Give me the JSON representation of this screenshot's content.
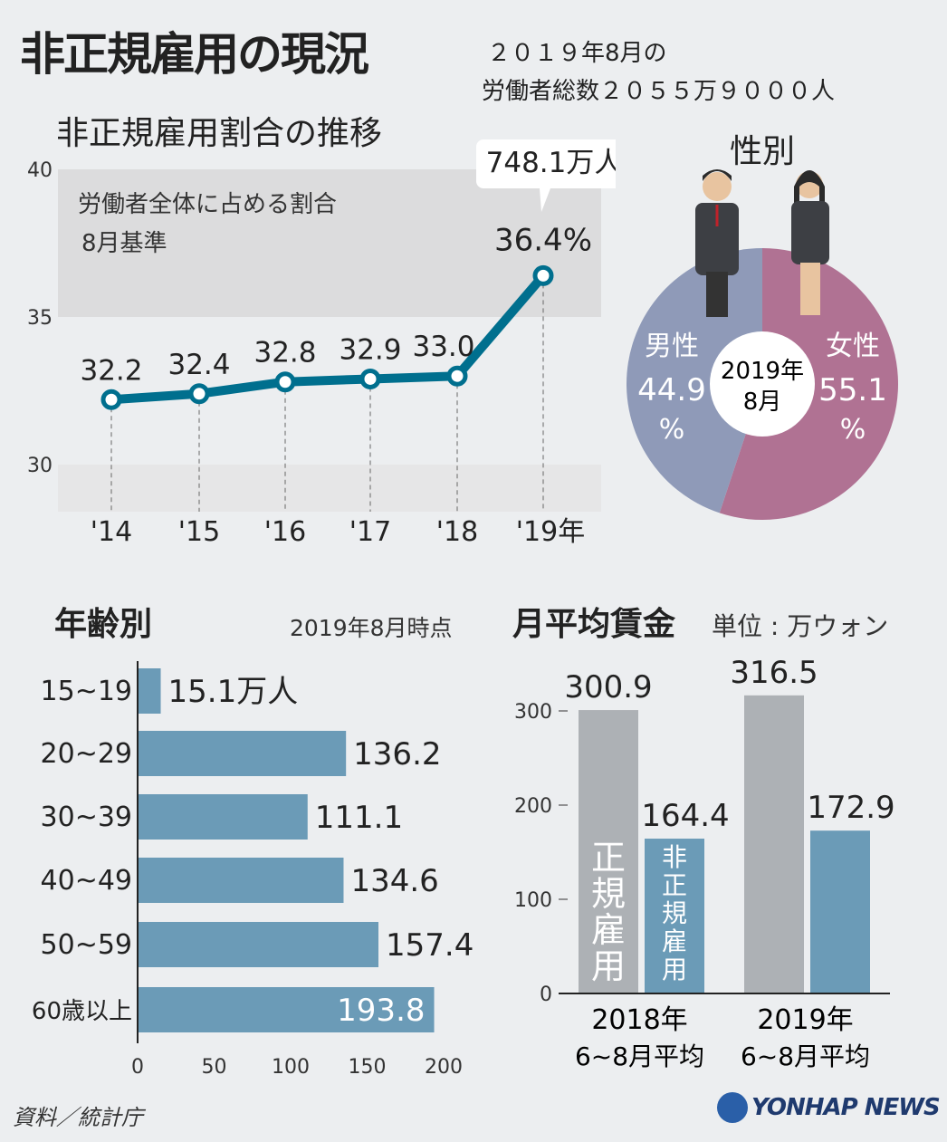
{
  "title": "非正規雇用の現況",
  "total_workers": {
    "line1": "２０１９年8月の",
    "line2": "労働者総数２０５５万９０００人"
  },
  "colors": {
    "line": "#006f8e",
    "bar": "#6b9bb7",
    "regular": "#adb1b5",
    "female": "#b07293",
    "male": "#8f9ab8",
    "band": "#dcdcdd"
  },
  "logo": "YONHAP NEWS",
  "source": "資料／統計庁",
  "chart_data": [
    {
      "type": "line",
      "title": "非正規雇用割合の推移",
      "note_line1": "労働者全体に占める割合",
      "note_line2": "8月基準",
      "categories": [
        "'14",
        "'15",
        "'16",
        "'17",
        "'18",
        "'19年"
      ],
      "values": [
        32.2,
        32.4,
        32.8,
        32.9,
        33.0,
        36.4
      ],
      "data_labels": [
        "32.2",
        "32.4",
        "32.8",
        "32.9",
        "33.0",
        "36.4%"
      ],
      "callout": "748.1万人",
      "yticks": [
        "30",
        "35",
        "40"
      ],
      "ylim": [
        28.4,
        40
      ]
    },
    {
      "type": "pie",
      "title": "性別",
      "center_label_line1": "2019年",
      "center_label_line2": "8月",
      "slices": [
        {
          "label": "女性",
          "value": 55.1,
          "value_label": "55.1",
          "unit": "%"
        },
        {
          "label": "男性",
          "value": 44.9,
          "value_label": "44.9",
          "unit": "%"
        }
      ]
    },
    {
      "type": "bar",
      "orientation": "horizontal",
      "title": "年齢別",
      "subtitle": "2019年8月時点",
      "categories": [
        "15~19",
        "20~29",
        "30~39",
        "40~49",
        "50~59",
        "60歳以上"
      ],
      "values": [
        15.1,
        136.2,
        111.1,
        134.6,
        157.4,
        193.8
      ],
      "data_labels": [
        "15.1万人",
        "136.2",
        "111.1",
        "134.6",
        "157.4",
        "193.8"
      ],
      "xticks": [
        "0",
        "50",
        "100",
        "150",
        "200"
      ],
      "xlim": [
        0,
        200
      ]
    },
    {
      "type": "bar",
      "title": "月平均賃金",
      "unit": "単位 : 万ウォン",
      "categories": [
        [
          "2018年",
          "6~8月平均"
        ],
        [
          "2019年",
          "6~8月平均"
        ]
      ],
      "series": [
        {
          "name": "正規雇用",
          "values": [
            300.9,
            316.5
          ]
        },
        {
          "name": "非正規雇用",
          "values": [
            164.4,
            172.9
          ]
        }
      ],
      "yticks": [
        "0",
        "100",
        "200",
        "300"
      ],
      "ylim": [
        0,
        300
      ]
    }
  ]
}
